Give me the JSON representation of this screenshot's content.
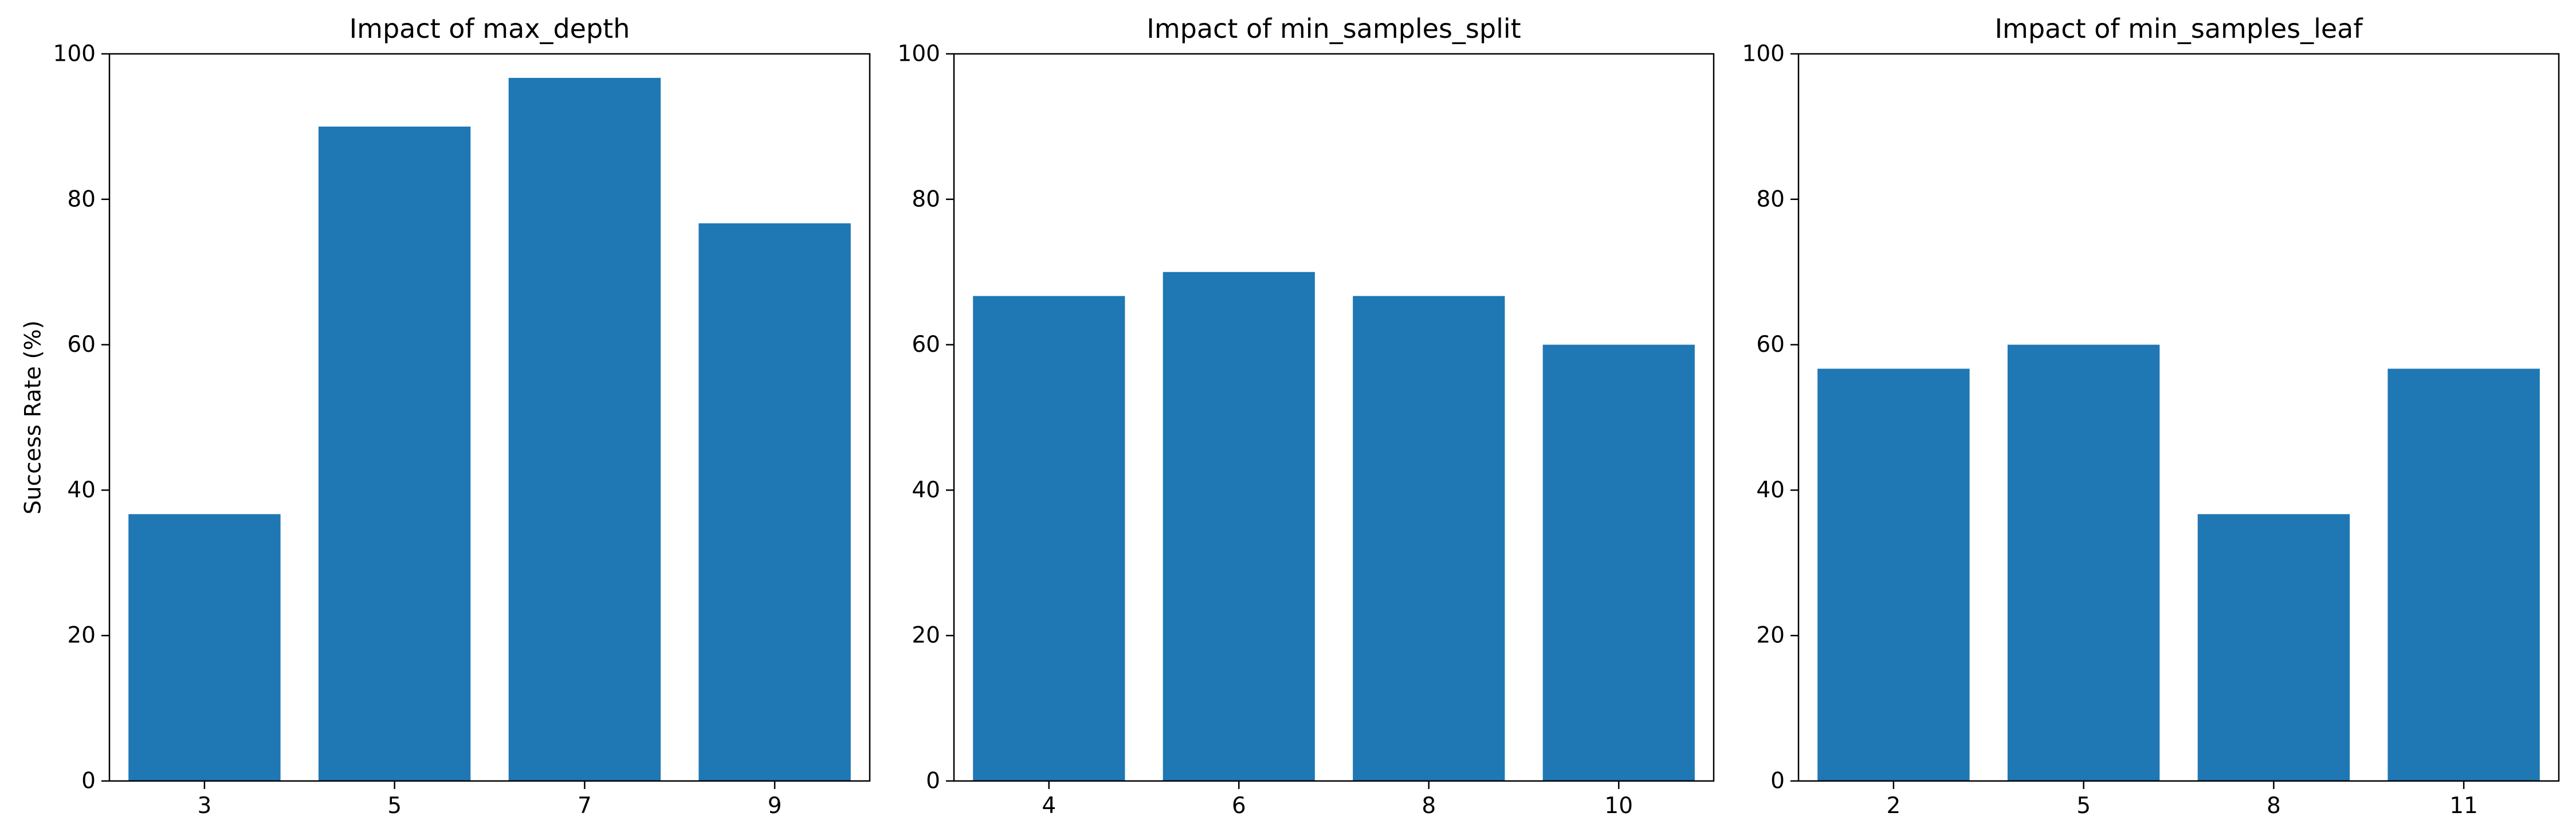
{
  "colors": {
    "bar": "#1f77b4",
    "axis": "#000000",
    "background": "#ffffff"
  },
  "chart_data": [
    {
      "type": "bar",
      "title": "Impact of max_depth",
      "xlabel": "",
      "ylabel": "Success Rate (%)",
      "categories": [
        "3",
        "5",
        "7",
        "9"
      ],
      "values": [
        36.7,
        90.0,
        96.7,
        76.7
      ],
      "ylim": [
        0,
        100
      ],
      "yticks": [
        0,
        20,
        40,
        60,
        80,
        100
      ],
      "grid": false
    },
    {
      "type": "bar",
      "title": "Impact of min_samples_split",
      "xlabel": "",
      "ylabel": "",
      "categories": [
        "4",
        "6",
        "8",
        "10"
      ],
      "values": [
        66.7,
        70.0,
        66.7,
        60.0
      ],
      "ylim": [
        0,
        100
      ],
      "yticks": [
        0,
        20,
        40,
        60,
        80,
        100
      ],
      "grid": false
    },
    {
      "type": "bar",
      "title": "Impact of min_samples_leaf",
      "xlabel": "",
      "ylabel": "",
      "categories": [
        "2",
        "5",
        "8",
        "11"
      ],
      "values": [
        56.7,
        60.0,
        36.7,
        56.7
      ],
      "ylim": [
        0,
        100
      ],
      "yticks": [
        0,
        20,
        40,
        60,
        80,
        100
      ],
      "grid": false
    }
  ]
}
